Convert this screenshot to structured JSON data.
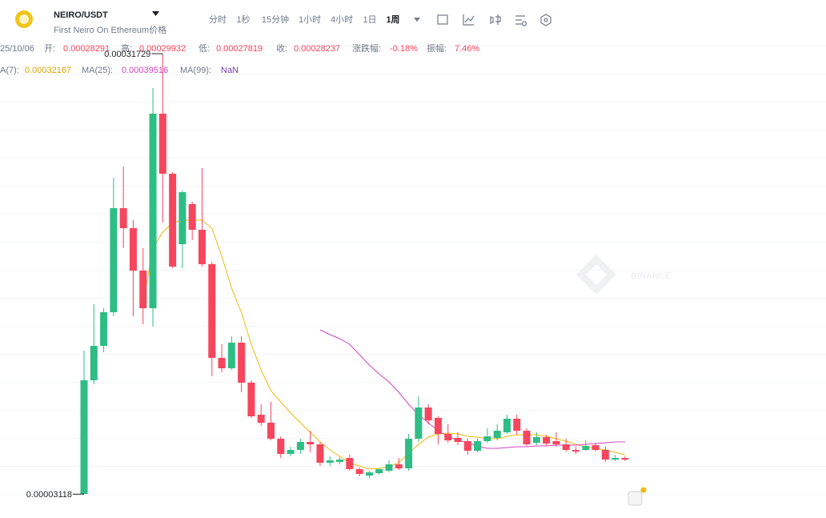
{
  "header": {
    "title": "NEIRO/USDT",
    "subtitle": "First Neiro On Ethereum价格"
  },
  "tabs": [
    "分时",
    "1秒",
    "15分钟",
    "1小时",
    "4小时",
    "1日",
    "1周"
  ],
  "active_tab": 6,
  "stats": {
    "date": "25/10/06",
    "items": [
      {
        "label": "开:",
        "value": "0.00028291"
      },
      {
        "label": "高:",
        "value": "0.00029932"
      },
      {
        "label": "低:",
        "value": "0.00027819"
      },
      {
        "label": "收:",
        "value": "0.00028237"
      },
      {
        "label": "涨跌幅:",
        "value": "-0.18%"
      },
      {
        "label": "振幅:",
        "value": "7.46%"
      }
    ]
  },
  "ma_legend": [
    {
      "label": "A(7):",
      "value": "0.00032167",
      "color": "#d9a400"
    },
    {
      "label": "MA(25):",
      "value": "0.00039516",
      "color": "#d444c4"
    },
    {
      "label": "MA(99):",
      "value": "NaN",
      "color": "#7d3ab0"
    }
  ],
  "watermark": "BINANCE",
  "chart_data": {
    "type": "candlestick",
    "up_color": "#2ebd85",
    "down_color": "#f6465d",
    "ylim": [
      1.777e-05,
      0.00035213
    ],
    "open": [
      3.129e-05,
      0.00010513,
      0.00012749,
      0.00014933,
      0.00021693,
      0.00020393,
      0.00017637,
      0.00015193,
      0.00027829,
      0.00023929,
      0.00019353,
      0.00021953,
      0.00020289,
      0.00018053,
      0.00011969,
      0.00011293,
      0.00012957,
      0.00010357,
      8.277e-05,
      7.757e-05,
      6.717e-05,
      5.729e-05,
      5.989e-05,
      6.509e-05,
      6.353e-05,
      5.157e-05,
      5.209e-05,
      5.469e-05,
      4.741e-05,
      4.325e-05,
      4.481e-05,
      4.637e-05,
      5.053e-05,
      4.793e-05,
      6.717e-05,
      8.745e-05,
      8.069e-05,
      7.029e-05,
      6.769e-05,
      6.561e-05,
      5.937e-05,
      6.561e-05,
      6.769e-05,
      7.133e-05,
      8.017e-05,
      7.237e-05,
      6.457e-05,
      6.821e-05,
      6.561e-05,
      6.353e-05,
      5.989e-05,
      5.989e-05,
      6.301e-05,
      5.989e-05,
      5.365e-05,
      5.469e-05
    ],
    "high": [
      0.00012437,
      0.00015453,
      0.00015193,
      0.00023669,
      0.00024397,
      0.00020913,
      0.00019093,
      0.00029493,
      0.00031729,
      0.00024033,
      0.00022837,
      0.00022109,
      0.00024293,
      0.00018209,
      0.00012853,
      0.00013373,
      0.00013373,
      0.00010513,
      8.953e-05,
      9.109e-05,
      6.873e-05,
      6.197e-05,
      6.717e-05,
      7.237e-05,
      6.509e-05,
      5.573e-05,
      5.521e-05,
      5.677e-05,
      4.845e-05,
      4.637e-05,
      4.793e-05,
      5.313e-05,
      5.469e-05,
      7.029e-05,
      9.473e-05,
      8.953e-05,
      8.173e-05,
      7.653e-05,
      7.133e-05,
      6.717e-05,
      6.717e-05,
      7.393e-05,
      7.653e-05,
      8.277e-05,
      8.277e-05,
      7.393e-05,
      7.133e-05,
      6.977e-05,
      7.133e-05,
      6.717e-05,
      6.197e-05,
      6.613e-05,
      6.457e-05,
      6.197e-05,
      5.677e-05,
      5.573e-05
    ],
    "low": [
      3.118e-05,
      0.00010253,
      0.00012333,
      0.00014673,
      0.00019093,
      0.00014673,
      0.00014153,
      0.00013997,
      0.00020757,
      0.00017793,
      0.00017793,
      0.00019613,
      0.00017897,
      0.00010773,
      0.00011033,
      0.00011189,
      9.733e-05,
      8.069e-05,
      7.549e-05,
      6.613e-05,
      5.469e-05,
      5.573e-05,
      5.729e-05,
      5.833e-05,
      4.949e-05,
      4.949e-05,
      5.053e-05,
      4.637e-05,
      4.273e-05,
      4.169e-05,
      4.377e-05,
      4.533e-05,
      4.689e-05,
      4.637e-05,
      6.509e-05,
      7.653e-05,
      6.353e-05,
      6.457e-05,
      6.301e-05,
      5.677e-05,
      5.833e-05,
      6.457e-05,
      6.613e-05,
      7.029e-05,
      6.977e-05,
      6.249e-05,
      6.301e-05,
      6.249e-05,
      6.197e-05,
      5.885e-05,
      5.729e-05,
      5.937e-05,
      5.885e-05,
      5.209e-05,
      5.261e-05,
      5.261e-05
    ],
    "close": [
      0.00010513,
      0.00012749,
      0.00014933,
      0.00021693,
      0.00020393,
      0.00017637,
      0.00015193,
      0.00027829,
      0.00023929,
      0.00017897,
      0.00022733,
      0.00020289,
      0.00018053,
      0.00011969,
      0.00011293,
      0.00012957,
      0.00010357,
      8.173e-05,
      7.757e-05,
      6.717e-05,
      5.729e-05,
      5.989e-05,
      6.509e-05,
      6.353e-05,
      5.157e-05,
      5.313e-05,
      5.365e-05,
      4.741e-05,
      4.429e-05,
      4.533e-05,
      4.741e-05,
      5.053e-05,
      4.793e-05,
      6.717e-05,
      8.745e-05,
      7.913e-05,
      7.029e-05,
      6.613e-05,
      6.509e-05,
      5.937e-05,
      6.561e-05,
      6.873e-05,
      7.237e-05,
      8.017e-05,
      7.237e-05,
      6.353e-05,
      6.821e-05,
      6.405e-05,
      6.353e-05,
      5.989e-05,
      5.885e-05,
      6.249e-05,
      5.989e-05,
      5.365e-05,
      5.469e-05,
      5.365e-05
    ],
    "series": [
      {
        "color": "#f0b90b",
        "values": [
          null,
          null,
          null,
          null,
          null,
          null,
          0.00015453,
          0.00019093,
          0.00020133,
          0.00020757,
          0.00020913,
          0.00020913,
          0.00020913,
          0.00020393,
          0.00018573,
          0.00016493,
          0.00014933,
          0.00012853,
          0.00011189,
          9.837e-05,
          9.109e-05,
          8.381e-05,
          7.757e-05,
          7.133e-05,
          6.509e-05,
          5.989e-05,
          5.573e-05,
          5.157e-05,
          4.949e-05,
          4.741e-05,
          4.793e-05,
          4.897e-05,
          5.157e-05,
          5.781e-05,
          6.353e-05,
          6.821e-05,
          7.029e-05,
          7.081e-05,
          7.029e-05,
          6.873e-05,
          6.821e-05,
          6.717e-05,
          6.717e-05,
          6.873e-05,
          6.977e-05,
          6.977e-05,
          6.977e-05,
          6.873e-05,
          6.717e-05,
          6.561e-05,
          6.353e-05,
          6.197e-05,
          6.093e-05,
          5.989e-05,
          5.833e-05,
          5.677e-05
        ]
      },
      {
        "color": "#d444c4",
        "values": [
          null,
          null,
          null,
          null,
          null,
          null,
          null,
          null,
          null,
          null,
          null,
          null,
          null,
          null,
          null,
          null,
          null,
          null,
          null,
          null,
          null,
          null,
          null,
          null,
          0.00013789,
          0.00013477,
          0.00013217,
          0.00012853,
          0.00012177,
          0.00011501,
          0.00010929,
          0.00010409,
          9.733e-05,
          8.953e-05,
          8.277e-05,
          7.757e-05,
          7.237e-05,
          6.873e-05,
          6.613e-05,
          6.457e-05,
          6.249e-05,
          6.093e-05,
          6.093e-05,
          6.145e-05,
          6.197e-05,
          6.197e-05,
          6.249e-05,
          6.249e-05,
          6.301e-05,
          6.301e-05,
          6.301e-05,
          6.353e-05,
          6.405e-05,
          6.457e-05,
          6.509e-05,
          6.509e-05
        ]
      }
    ]
  }
}
